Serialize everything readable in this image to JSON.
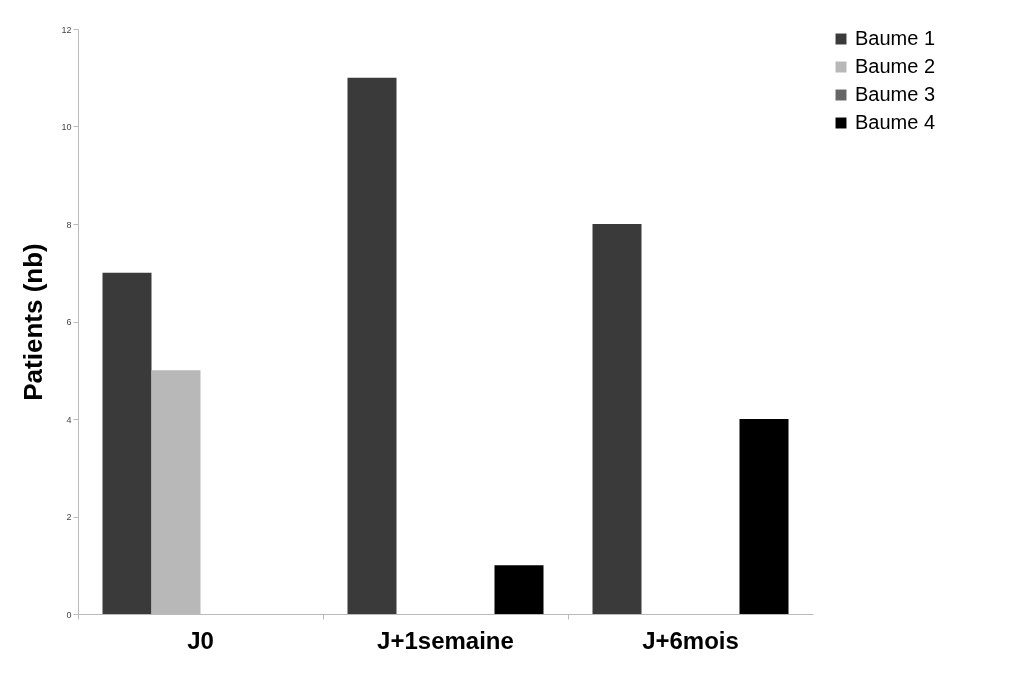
{
  "chart_data": {
    "type": "bar",
    "ylabel": "Patients (nb)",
    "categories": [
      "J0",
      "J+1semaine",
      "J+6mois"
    ],
    "series": [
      {
        "name": "Baume 1",
        "color": "#3a3a3a",
        "values": [
          7,
          11,
          8
        ]
      },
      {
        "name": "Baume 2",
        "color": "#b8b8b8",
        "values": [
          5,
          null,
          null
        ]
      },
      {
        "name": "Baume 3",
        "color": "#666666",
        "values": [
          null,
          null,
          null
        ]
      },
      {
        "name": "Baume 4",
        "color": "#000000",
        "values": [
          null,
          1,
          4
        ]
      }
    ],
    "ylim": [
      0,
      12
    ],
    "yticks": [
      0,
      2,
      4,
      6,
      8,
      10,
      12
    ],
    "grid": false,
    "legend": "right"
  }
}
